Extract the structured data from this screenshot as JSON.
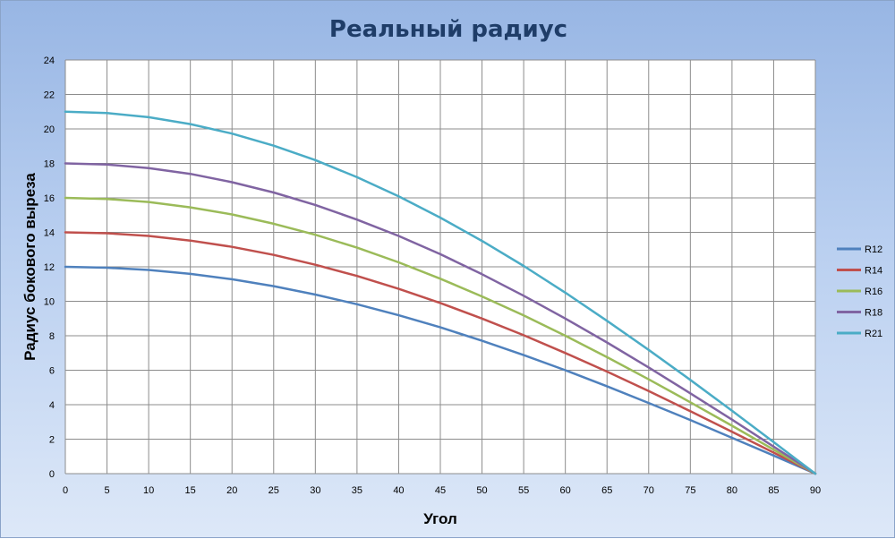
{
  "chart_data": {
    "type": "line",
    "title": "Реальный радиус",
    "xlabel": "Угол",
    "ylabel": "Радиус бокового выреза",
    "xlim": [
      0,
      90
    ],
    "ylim": [
      0,
      24
    ],
    "xticks": [
      0,
      5,
      10,
      15,
      20,
      25,
      30,
      35,
      40,
      45,
      50,
      55,
      60,
      65,
      70,
      75,
      80,
      85,
      90
    ],
    "yticks": [
      0,
      2,
      4,
      6,
      8,
      10,
      12,
      14,
      16,
      18,
      20,
      22,
      24
    ],
    "grid": true,
    "legend_position": "right",
    "x": [
      0,
      5,
      10,
      15,
      20,
      25,
      30,
      35,
      40,
      45,
      50,
      55,
      60,
      65,
      70,
      75,
      80,
      85,
      90
    ],
    "series": [
      {
        "name": "R12",
        "color": "#4f81bd",
        "values": [
          12.0,
          11.95,
          11.82,
          11.59,
          11.28,
          10.88,
          10.39,
          9.83,
          9.19,
          8.49,
          7.71,
          6.88,
          6.0,
          5.07,
          4.1,
          3.11,
          2.08,
          1.05,
          0.0
        ]
      },
      {
        "name": "R14",
        "color": "#c0504d",
        "values": [
          14.0,
          13.95,
          13.79,
          13.52,
          13.16,
          12.69,
          12.12,
          11.47,
          10.72,
          9.9,
          9.0,
          8.03,
          7.0,
          5.92,
          4.79,
          3.62,
          2.43,
          1.22,
          0.0
        ]
      },
      {
        "name": "R16",
        "color": "#9bbb59",
        "values": [
          16.0,
          15.94,
          15.76,
          15.45,
          15.04,
          14.5,
          13.86,
          13.11,
          12.26,
          11.31,
          10.28,
          9.18,
          8.0,
          6.76,
          5.47,
          4.14,
          2.78,
          1.39,
          0.0
        ]
      },
      {
        "name": "R18",
        "color": "#8064a2",
        "values": [
          18.0,
          17.93,
          17.73,
          17.39,
          16.91,
          16.31,
          15.59,
          14.74,
          13.79,
          12.73,
          11.57,
          10.32,
          9.0,
          7.61,
          6.16,
          4.66,
          3.13,
          1.57,
          0.0
        ]
      },
      {
        "name": "R21",
        "color": "#4bacc6",
        "values": [
          21.0,
          20.92,
          20.68,
          20.28,
          19.73,
          19.03,
          18.19,
          17.2,
          16.09,
          14.85,
          13.5,
          12.05,
          10.5,
          8.87,
          7.18,
          5.44,
          3.65,
          1.83,
          0.0
        ]
      }
    ]
  }
}
